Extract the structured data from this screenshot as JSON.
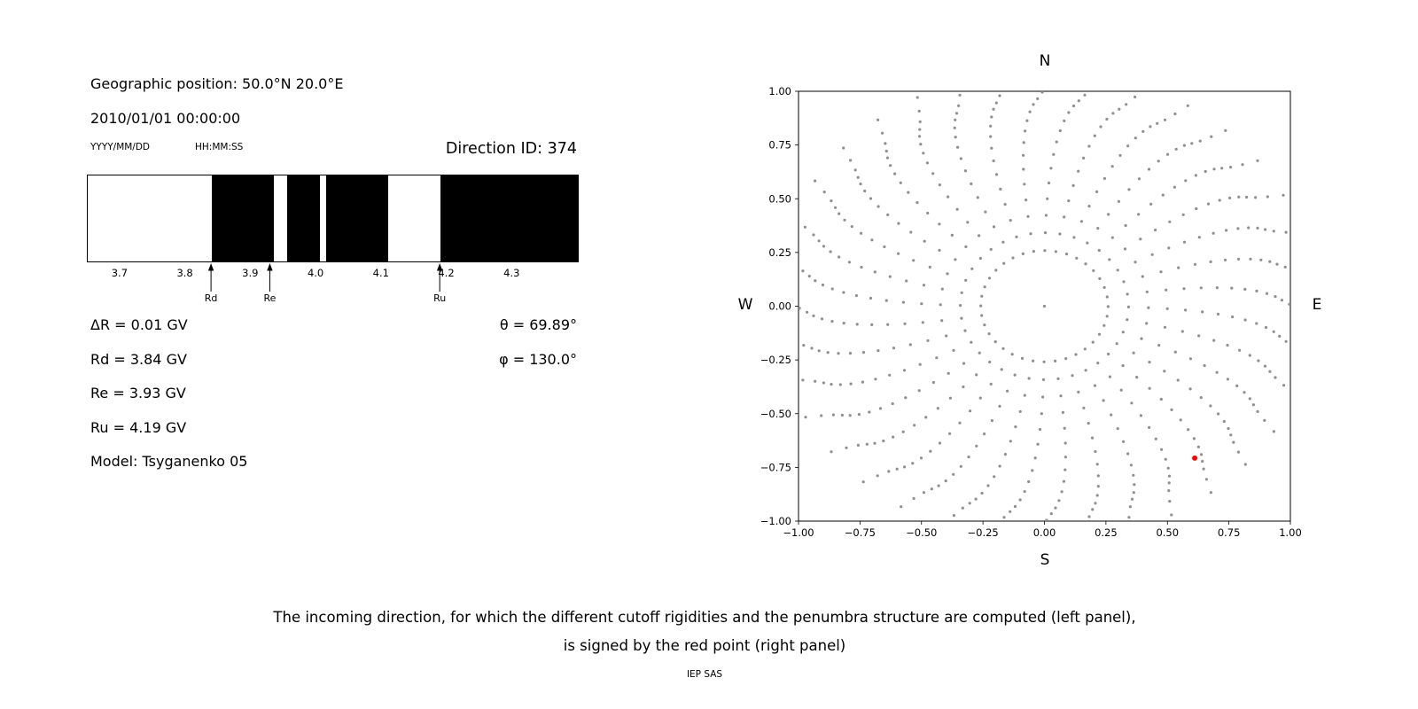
{
  "left_panel": {
    "geo_label": "Geographic position: 50.0°N 20.0°E",
    "datetime": "2010/01/01 00:00:00",
    "date_format_hint": "YYYY/MM/DD",
    "time_format_hint": "HH:MM:SS",
    "direction_id_label": "Direction ID: 374",
    "info_left": [
      "ΔR = 0.01 GV",
      "Rd = 3.84 GV",
      "Re = 3.93 GV",
      "Ru = 4.19 GV",
      "Model: Tsyganenko 05"
    ],
    "info_right": [
      "θ = 69.89°",
      "φ = 130.0°"
    ]
  },
  "chart_data": [
    {
      "type": "bar",
      "name": "penumbra-structure",
      "title": "",
      "x_range": [
        3.65,
        4.4
      ],
      "xticks": [
        3.7,
        3.8,
        3.9,
        4.0,
        4.1,
        4.2,
        4.3
      ],
      "xtick_labels": [
        "3.7",
        "3.8",
        "3.9",
        "4.0",
        "4.1",
        "4.2",
        "4.3"
      ],
      "forbidden_bands_gv": [
        [
          3.84,
          3.935
        ],
        [
          3.955,
          4.005
        ],
        [
          4.015,
          4.11
        ],
        [
          4.19,
          4.4
        ]
      ],
      "band_color": "#000000",
      "background_color": "#ffffff",
      "markers": [
        {
          "label": "Rd",
          "value_gv": 3.84
        },
        {
          "label": "Re",
          "value_gv": 3.93
        },
        {
          "label": "Ru",
          "value_gv": 4.19
        }
      ]
    },
    {
      "type": "scatter",
      "name": "incoming-direction-grid",
      "title": "",
      "xlim": [
        -1,
        1
      ],
      "ylim": [
        -1,
        1
      ],
      "xticks": [
        -1,
        -0.75,
        -0.5,
        -0.25,
        0,
        0.25,
        0.5,
        0.75,
        1
      ],
      "yticks": [
        -1,
        -0.75,
        -0.5,
        -0.25,
        0,
        0.25,
        0.5,
        0.75,
        1
      ],
      "tick_labels": [
        "−1.00",
        "−0.75",
        "−0.50",
        "−0.25",
        "0.00",
        "0.25",
        "0.50",
        "0.75",
        "1.00"
      ],
      "grid": false,
      "compass": {
        "top": "N",
        "bottom": "S",
        "left": "W",
        "right": "E"
      },
      "direction_grid": {
        "azimuth_step_deg": 10,
        "zenith_angles_deg": [
          15,
          20,
          25,
          30,
          35,
          40,
          45,
          50,
          55,
          60,
          65,
          70,
          75,
          80,
          85,
          90
        ],
        "includes_center_point": true,
        "radius_mapping": "sin(zenith)",
        "bend_deg_max": 12,
        "tip_overshoot": 0.1,
        "dot_color": "#8f8f8f"
      },
      "selected_point": {
        "x": 0.611,
        "y": -0.707,
        "color": "#ff0000"
      }
    }
  ],
  "caption": {
    "line1": "The incoming direction, for which the different cutoff rigidities and the penumbra structure are computed (left panel),",
    "line2": "is signed by the red point (right panel)",
    "credit": "IEP SAS"
  }
}
